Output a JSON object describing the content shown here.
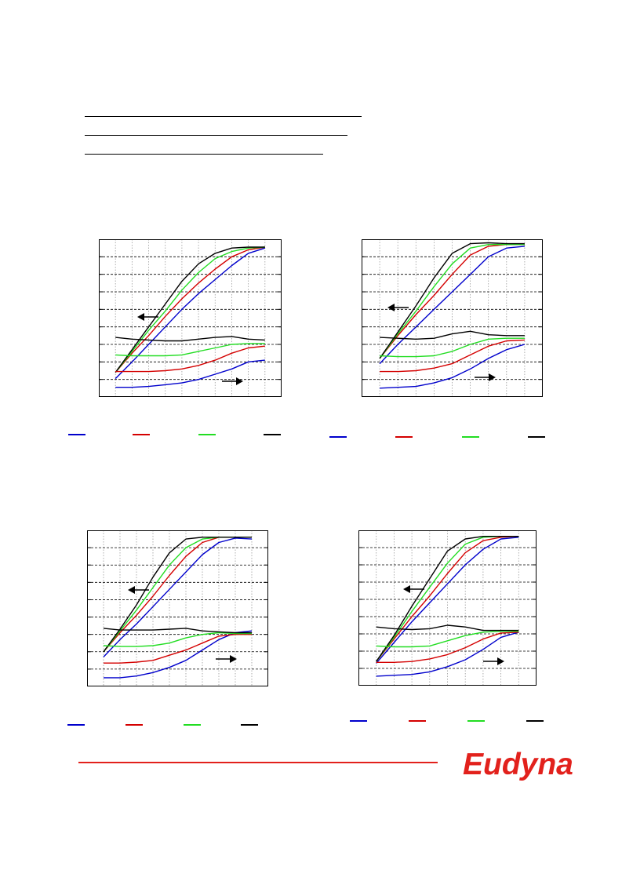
{
  "colors": {
    "series": [
      "#0000cc",
      "#d40000",
      "#22dd22",
      "#000000"
    ],
    "brand": "#e2211c",
    "grid": "#000000"
  },
  "logo": {
    "text": "Eudyna"
  },
  "arrows": {
    "left_icon": "arrow-left-icon",
    "right_icon": "arrow-right-icon"
  },
  "chart_data": [
    {
      "type": "line",
      "grid": true,
      "x": [
        0,
        1,
        2,
        3,
        4,
        5,
        6,
        7,
        8,
        9
      ],
      "xlim": [
        -1,
        10
      ],
      "ylim": [
        0,
        9
      ],
      "series": [
        {
          "values": [
            1.05,
            2.0,
            3.0,
            4.0,
            5.0,
            5.9,
            6.7,
            7.5,
            8.2,
            8.5
          ]
        },
        {
          "values": [
            1.4,
            2.5,
            3.5,
            4.6,
            5.6,
            6.5,
            7.3,
            8.0,
            8.4,
            8.55
          ]
        },
        {
          "values": [
            1.4,
            2.6,
            3.8,
            4.9,
            6.1,
            7.1,
            7.9,
            8.3,
            8.5,
            8.55
          ]
        },
        {
          "values": [
            1.4,
            2.7,
            4.0,
            5.3,
            6.6,
            7.6,
            8.2,
            8.5,
            8.55,
            8.55
          ]
        },
        {
          "values": [
            0.55,
            0.55,
            0.6,
            0.7,
            0.8,
            1.0,
            1.3,
            1.6,
            2.0,
            2.1
          ]
        },
        {
          "values": [
            1.45,
            1.45,
            1.45,
            1.5,
            1.6,
            1.8,
            2.1,
            2.5,
            2.8,
            2.9
          ]
        },
        {
          "values": [
            2.4,
            2.35,
            2.35,
            2.35,
            2.4,
            2.6,
            2.8,
            3.0,
            3.05,
            3.05
          ]
        },
        {
          "values": [
            3.4,
            3.3,
            3.25,
            3.2,
            3.2,
            3.3,
            3.4,
            3.45,
            3.3,
            3.25
          ]
        }
      ]
    },
    {
      "type": "line",
      "grid": true,
      "x": [
        0,
        1,
        2,
        3,
        4,
        5,
        6,
        7,
        8
      ],
      "xlim": [
        -1,
        9
      ],
      "ylim": [
        0,
        9
      ],
      "series": [
        {
          "values": [
            1.9,
            3.0,
            4.0,
            5.0,
            6.0,
            7.0,
            8.0,
            8.5,
            8.6
          ]
        },
        {
          "values": [
            2.2,
            3.5,
            4.7,
            5.8,
            7.0,
            8.1,
            8.6,
            8.7,
            8.7
          ]
        },
        {
          "values": [
            2.2,
            3.6,
            4.9,
            6.3,
            7.6,
            8.5,
            8.7,
            8.7,
            8.7
          ]
        },
        {
          "values": [
            2.2,
            3.7,
            5.2,
            6.8,
            8.2,
            8.75,
            8.8,
            8.75,
            8.75
          ]
        },
        {
          "values": [
            0.5,
            0.55,
            0.6,
            0.8,
            1.1,
            1.6,
            2.2,
            2.7,
            3.0
          ]
        },
        {
          "values": [
            1.45,
            1.45,
            1.5,
            1.65,
            1.9,
            2.4,
            2.9,
            3.2,
            3.25
          ]
        },
        {
          "values": [
            2.35,
            2.3,
            2.3,
            2.35,
            2.6,
            3.0,
            3.3,
            3.35,
            3.35
          ]
        },
        {
          "values": [
            3.4,
            3.35,
            3.3,
            3.35,
            3.6,
            3.75,
            3.55,
            3.5,
            3.5
          ]
        }
      ]
    },
    {
      "type": "line",
      "grid": true,
      "x": [
        0,
        1,
        2,
        3,
        4,
        5,
        6,
        7,
        8,
        9
      ],
      "xlim": [
        -1,
        10
      ],
      "ylim": [
        0,
        9
      ],
      "series": [
        {
          "values": [
            1.7,
            2.7,
            3.6,
            4.6,
            5.6,
            6.6,
            7.6,
            8.3,
            8.55,
            8.5
          ]
        },
        {
          "values": [
            2.0,
            3.1,
            4.1,
            5.2,
            6.4,
            7.5,
            8.3,
            8.6,
            8.6,
            8.6
          ]
        },
        {
          "values": [
            2.0,
            3.2,
            4.4,
            5.7,
            7.0,
            8.0,
            8.5,
            8.6,
            8.6,
            8.6
          ]
        },
        {
          "values": [
            2.0,
            3.3,
            4.7,
            6.3,
            7.7,
            8.5,
            8.6,
            8.6,
            8.6,
            8.6
          ]
        },
        {
          "values": [
            0.5,
            0.5,
            0.6,
            0.8,
            1.1,
            1.5,
            2.1,
            2.7,
            3.1,
            3.2
          ]
        },
        {
          "values": [
            1.35,
            1.35,
            1.4,
            1.5,
            1.8,
            2.1,
            2.5,
            2.9,
            3.0,
            3.0
          ]
        },
        {
          "values": [
            2.35,
            2.3,
            2.3,
            2.35,
            2.5,
            2.8,
            3.0,
            3.1,
            3.05,
            3.05
          ]
        },
        {
          "values": [
            3.35,
            3.25,
            3.25,
            3.25,
            3.3,
            3.35,
            3.2,
            3.15,
            3.1,
            3.1
          ]
        }
      ]
    },
    {
      "type": "line",
      "grid": true,
      "x": [
        0,
        1,
        2,
        3,
        4,
        5,
        6,
        7,
        8
      ],
      "xlim": [
        -1,
        9
      ],
      "ylim": [
        0,
        9
      ],
      "series": [
        {
          "values": [
            1.3,
            2.5,
            3.7,
            4.8,
            5.9,
            7.0,
            7.9,
            8.5,
            8.6
          ]
        },
        {
          "values": [
            1.4,
            2.7,
            4.0,
            5.2,
            6.5,
            7.7,
            8.4,
            8.6,
            8.65
          ]
        },
        {
          "values": [
            1.4,
            2.8,
            4.3,
            5.7,
            7.1,
            8.2,
            8.6,
            8.65,
            8.65
          ]
        },
        {
          "values": [
            1.4,
            2.9,
            4.6,
            6.2,
            7.8,
            8.5,
            8.65,
            8.65,
            8.65
          ]
        },
        {
          "values": [
            0.55,
            0.6,
            0.65,
            0.8,
            1.1,
            1.5,
            2.1,
            2.8,
            3.1
          ]
        },
        {
          "values": [
            1.35,
            1.35,
            1.4,
            1.55,
            1.8,
            2.2,
            2.7,
            3.05,
            3.1
          ]
        },
        {
          "values": [
            2.3,
            2.25,
            2.25,
            2.3,
            2.6,
            2.9,
            3.1,
            3.15,
            3.15
          ]
        },
        {
          "values": [
            3.4,
            3.3,
            3.25,
            3.3,
            3.5,
            3.4,
            3.2,
            3.2,
            3.2
          ]
        }
      ]
    }
  ]
}
